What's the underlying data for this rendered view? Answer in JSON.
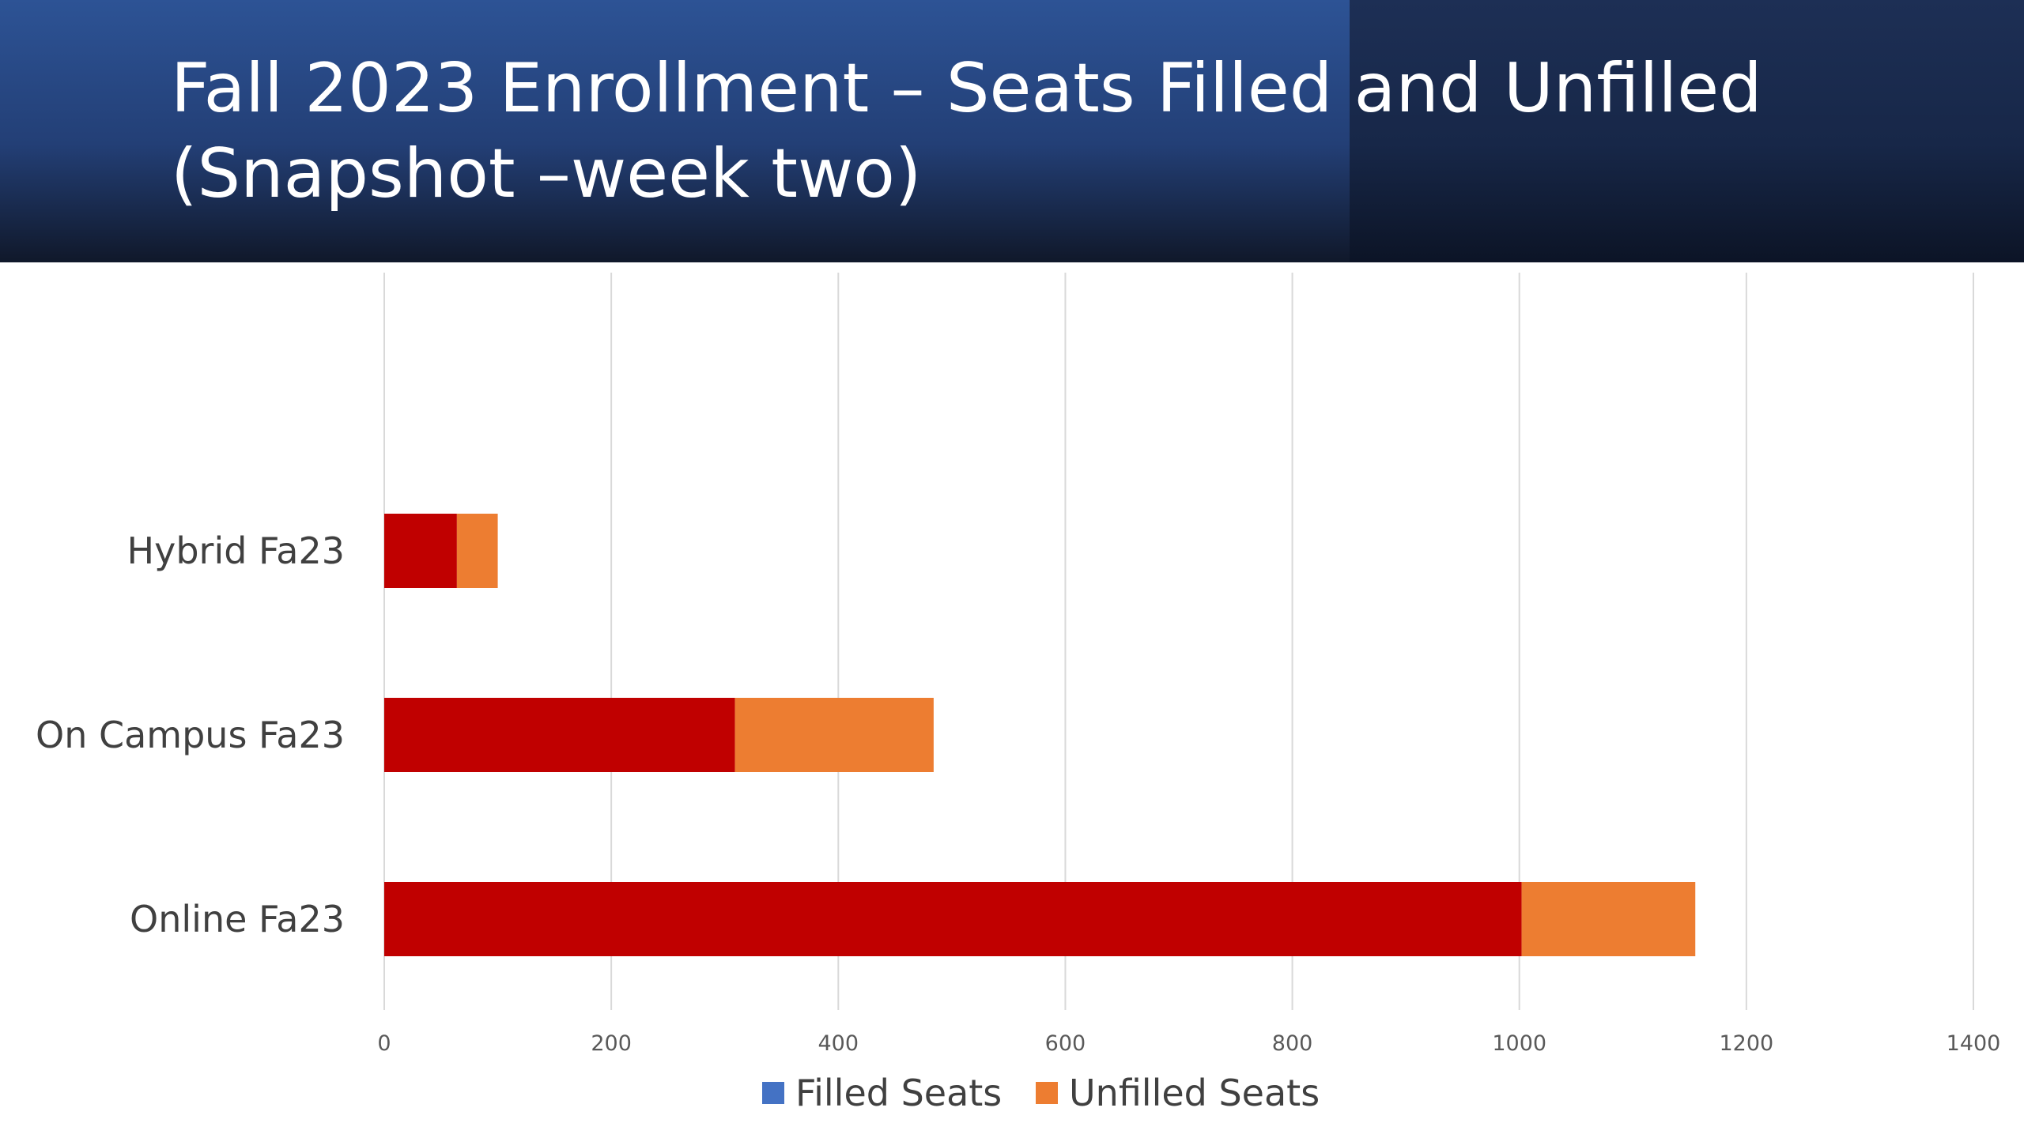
{
  "slide": {
    "title_line1": "Fall 2023 Enrollment – Seats Filled and Unfilled",
    "title_line2": "(Snapshot –week two)"
  },
  "chart_data": {
    "type": "bar",
    "orientation": "horizontal",
    "stacked": true,
    "title": "Fall 2023 Enrollment – Seats Filled and Unfilled (Snapshot –week two)",
    "xlabel": "",
    "ylabel": "",
    "categories": [
      "Online Fa23",
      "On Campus Fa23",
      "Hybrid Fa23"
    ],
    "series": [
      {
        "name": "Filled Seats",
        "values": [
          1002,
          309,
          64
        ],
        "bar_color": "#c00000",
        "legend_color": "#4472c4"
      },
      {
        "name": "Unfilled Seats",
        "values": [
          153,
          175,
          36
        ],
        "bar_color": "#ed7d31",
        "legend_color": "#ed7d31"
      }
    ],
    "xlim": [
      0,
      1400
    ],
    "xticks": [
      0,
      200,
      400,
      600,
      800,
      1000,
      1200,
      1400
    ],
    "grid": true,
    "legend_position": "bottom"
  },
  "colors": {
    "grid": "#d9d9d9",
    "header_dark": "#0f1a30",
    "header_mid": "#2f528e"
  }
}
